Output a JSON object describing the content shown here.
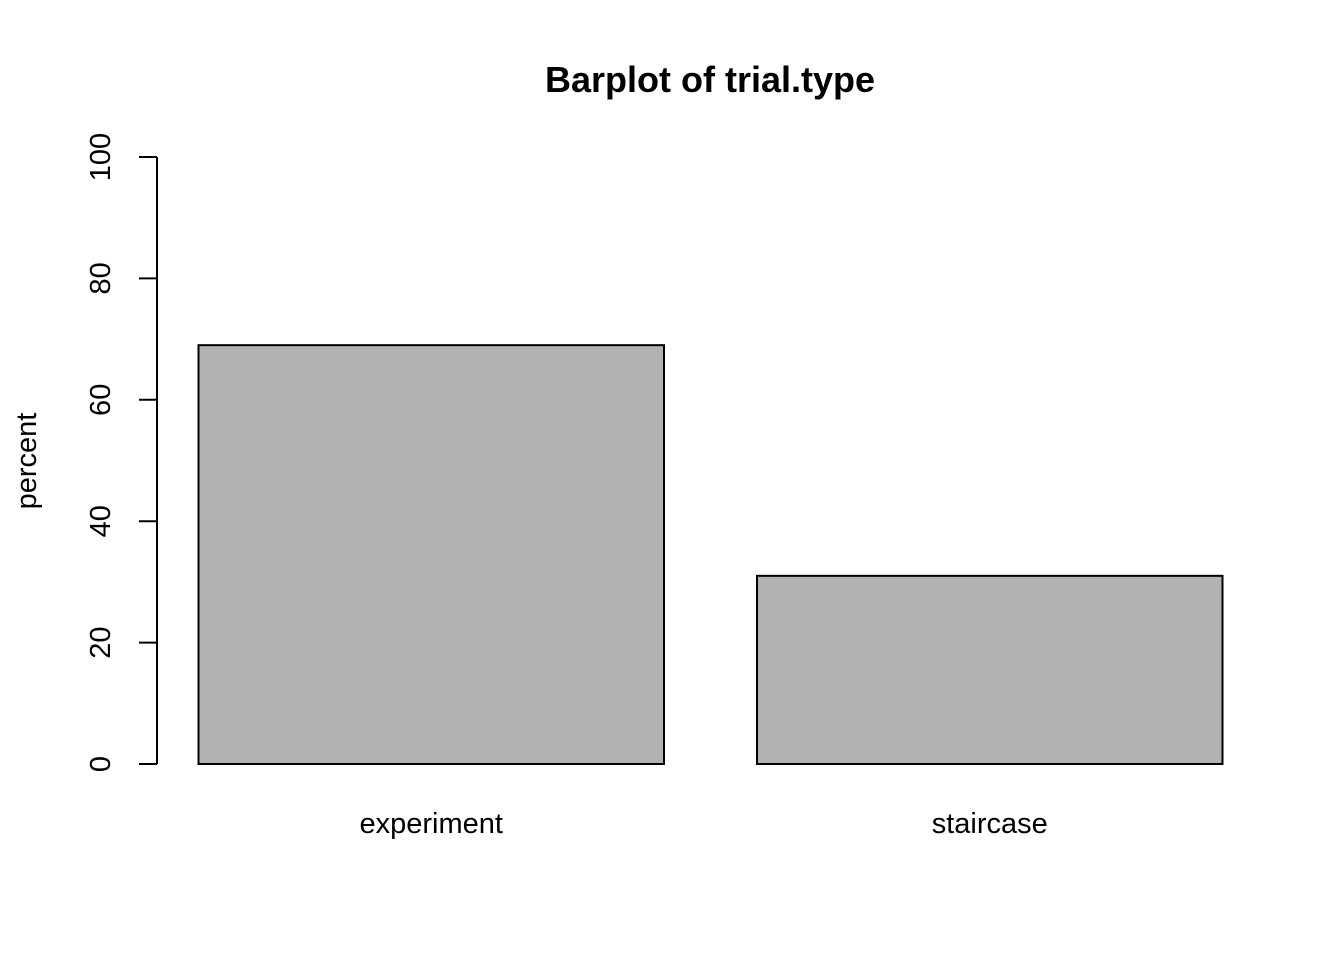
{
  "chart_data": {
    "type": "bar",
    "title": "Barplot of trial.type",
    "xlabel": "",
    "ylabel": "percent",
    "categories": [
      "experiment",
      "staircase"
    ],
    "values": [
      69,
      31
    ],
    "ylim": [
      0,
      100
    ],
    "yticks": [
      0,
      20,
      40,
      60,
      80,
      100
    ],
    "bar_color": "#b2b2b2",
    "grid": false,
    "legend": "none"
  }
}
